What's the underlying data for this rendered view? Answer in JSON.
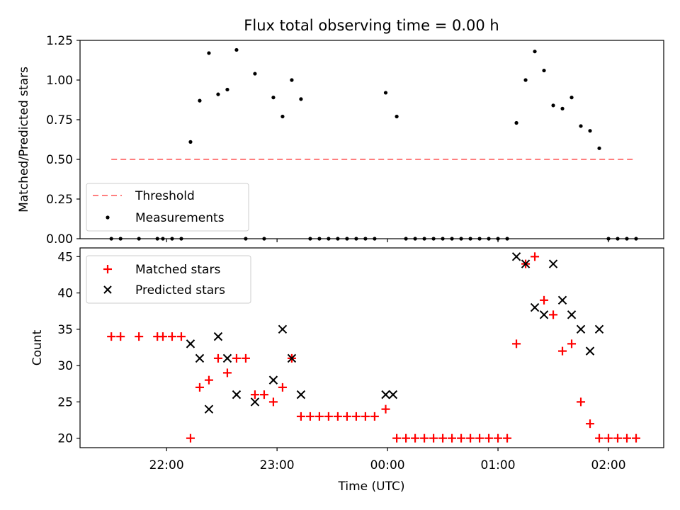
{
  "chart_data": [
    {
      "type": "scatter",
      "title": "Flux total observing time = 0.00 h",
      "xlabel": "",
      "ylabel": "Matched/Predicted stars",
      "xlim": [
        "21:13",
        "02:30"
      ],
      "ylim": [
        0,
        1.25
      ],
      "yticks": [
        "0.00",
        "0.25",
        "0.50",
        "0.75",
        "1.00",
        "1.25"
      ],
      "threshold": {
        "name": "Threshold",
        "value": 0.5,
        "x": [
          "21:30",
          "02:15"
        ],
        "color": "#ff7f7f"
      },
      "legend": {
        "position": "lower-left",
        "entries": [
          "Threshold",
          "Measurements"
        ]
      },
      "series": [
        {
          "name": "Measurements",
          "color": "#000000",
          "points": [
            [
              "21:30",
              0
            ],
            [
              "21:35",
              0
            ],
            [
              "21:45",
              0
            ],
            [
              "21:55",
              0
            ],
            [
              "21:58",
              0
            ],
            [
              "22:03",
              0
            ],
            [
              "22:08",
              0
            ],
            [
              "22:13",
              0.61
            ],
            [
              "22:18",
              0.87
            ],
            [
              "22:23",
              1.17
            ],
            [
              "22:28",
              0.91
            ],
            [
              "22:33",
              0.94
            ],
            [
              "22:38",
              1.19
            ],
            [
              "22:43",
              0
            ],
            [
              "22:48",
              1.04
            ],
            [
              "22:53",
              0
            ],
            [
              "22:58",
              0.89
            ],
            [
              "23:03",
              0.77
            ],
            [
              "23:08",
              1.0
            ],
            [
              "23:13",
              0.88
            ],
            [
              "23:18",
              0
            ],
            [
              "23:23",
              0
            ],
            [
              "23:28",
              0
            ],
            [
              "23:33",
              0
            ],
            [
              "23:38",
              0
            ],
            [
              "23:43",
              0
            ],
            [
              "23:48",
              0
            ],
            [
              "23:53",
              0
            ],
            [
              "23:59",
              0.92
            ],
            [
              "00:05",
              0.77
            ],
            [
              "00:10",
              0
            ],
            [
              "00:15",
              0
            ],
            [
              "00:20",
              0
            ],
            [
              "00:25",
              0
            ],
            [
              "00:30",
              0
            ],
            [
              "00:35",
              0
            ],
            [
              "00:40",
              0
            ],
            [
              "00:45",
              0
            ],
            [
              "00:50",
              0
            ],
            [
              "00:55",
              0
            ],
            [
              "01:00",
              0
            ],
            [
              "01:05",
              0
            ],
            [
              "01:10",
              0.73
            ],
            [
              "01:15",
              1.0
            ],
            [
              "01:20",
              1.18
            ],
            [
              "01:25",
              1.06
            ],
            [
              "01:30",
              0.84
            ],
            [
              "01:35",
              0.82
            ],
            [
              "01:40",
              0.89
            ],
            [
              "01:45",
              0.71
            ],
            [
              "01:50",
              0.68
            ],
            [
              "01:55",
              0.57
            ],
            [
              "02:00",
              0
            ],
            [
              "02:05",
              0
            ],
            [
              "02:10",
              0
            ],
            [
              "02:15",
              0
            ]
          ]
        }
      ]
    },
    {
      "type": "scatter",
      "title": "",
      "xlabel": "Time (UTC)",
      "ylabel": "Count",
      "xlim": [
        "21:13",
        "02:30"
      ],
      "ylim": [
        18.7,
        46.2
      ],
      "yticks": [
        "20",
        "25",
        "30",
        "35",
        "40",
        "45"
      ],
      "xticks": [
        "22:00",
        "23:00",
        "00:00",
        "01:00",
        "02:00"
      ],
      "legend": {
        "position": "top-left",
        "entries": [
          "Matched stars",
          "Predicted stars"
        ]
      },
      "series": [
        {
          "name": "Matched stars",
          "marker": "plus",
          "color": "#ff0000",
          "points": [
            [
              "21:30",
              34
            ],
            [
              "21:35",
              34
            ],
            [
              "21:45",
              34
            ],
            [
              "21:55",
              34
            ],
            [
              "21:58",
              34
            ],
            [
              "22:03",
              34
            ],
            [
              "22:08",
              34
            ],
            [
              "22:13",
              20
            ],
            [
              "22:18",
              27
            ],
            [
              "22:23",
              28
            ],
            [
              "22:28",
              31
            ],
            [
              "22:33",
              29
            ],
            [
              "22:38",
              31
            ],
            [
              "22:43",
              31
            ],
            [
              "22:48",
              26
            ],
            [
              "22:53",
              26
            ],
            [
              "22:58",
              25
            ],
            [
              "23:03",
              27
            ],
            [
              "23:08",
              31
            ],
            [
              "23:13",
              23
            ],
            [
              "23:18",
              23
            ],
            [
              "23:23",
              23
            ],
            [
              "23:28",
              23
            ],
            [
              "23:33",
              23
            ],
            [
              "23:38",
              23
            ],
            [
              "23:43",
              23
            ],
            [
              "23:48",
              23
            ],
            [
              "23:53",
              23
            ],
            [
              "23:59",
              24
            ],
            [
              "00:05",
              20
            ],
            [
              "00:10",
              20
            ],
            [
              "00:15",
              20
            ],
            [
              "00:20",
              20
            ],
            [
              "00:25",
              20
            ],
            [
              "00:30",
              20
            ],
            [
              "00:35",
              20
            ],
            [
              "00:40",
              20
            ],
            [
              "00:45",
              20
            ],
            [
              "00:50",
              20
            ],
            [
              "00:55",
              20
            ],
            [
              "01:00",
              20
            ],
            [
              "01:05",
              20
            ],
            [
              "01:10",
              33
            ],
            [
              "01:15",
              44
            ],
            [
              "01:20",
              45
            ],
            [
              "01:25",
              39
            ],
            [
              "01:30",
              37
            ],
            [
              "01:35",
              32
            ],
            [
              "01:40",
              33
            ],
            [
              "01:45",
              25
            ],
            [
              "01:50",
              22
            ],
            [
              "01:55",
              20
            ],
            [
              "02:00",
              20
            ],
            [
              "02:05",
              20
            ],
            [
              "02:10",
              20
            ],
            [
              "02:15",
              20
            ]
          ]
        },
        {
          "name": "Predicted stars",
          "marker": "x",
          "color": "#000000",
          "points": [
            [
              "22:13",
              33
            ],
            [
              "22:18",
              31
            ],
            [
              "22:23",
              24
            ],
            [
              "22:28",
              34
            ],
            [
              "22:33",
              31
            ],
            [
              "22:38",
              26
            ],
            [
              "22:48",
              25
            ],
            [
              "22:58",
              28
            ],
            [
              "23:03",
              35
            ],
            [
              "23:08",
              31
            ],
            [
              "23:13",
              26
            ],
            [
              "23:59",
              26
            ],
            [
              "00:03",
              26
            ],
            [
              "01:10",
              45
            ],
            [
              "01:15",
              44
            ],
            [
              "01:20",
              38
            ],
            [
              "01:25",
              37
            ],
            [
              "01:30",
              44
            ],
            [
              "01:35",
              39
            ],
            [
              "01:40",
              37
            ],
            [
              "01:45",
              35
            ],
            [
              "01:50",
              32
            ],
            [
              "01:55",
              35
            ]
          ]
        }
      ]
    }
  ]
}
